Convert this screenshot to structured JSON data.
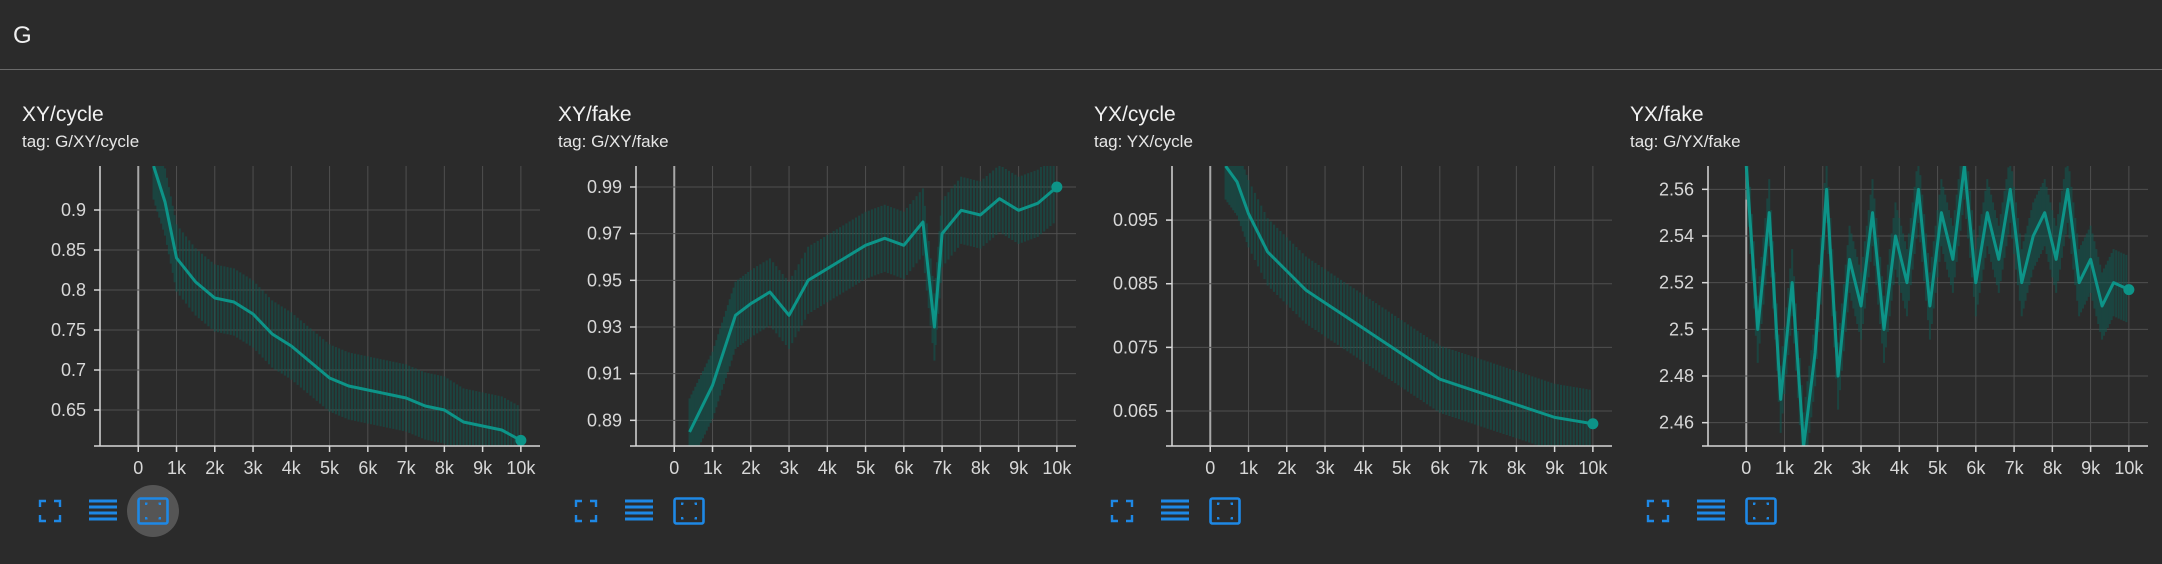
{
  "group": {
    "title": "G"
  },
  "colors": {
    "line": "#0d9488",
    "band": "#0f5a52",
    "axis": "#d8d8d8",
    "grid": "#4f4f4f",
    "zero": "#a8a8a8",
    "icon": "#1e88e5"
  },
  "toolbar": {
    "icons": [
      "fullscreen-icon",
      "log-scale-icon",
      "fit-domain-icon"
    ]
  },
  "chart_data": [
    {
      "type": "line",
      "title": "XY/cycle",
      "tag": "tag: G/XY/cycle",
      "x_ticks": [
        "0",
        "1k",
        "2k",
        "3k",
        "4k",
        "5k",
        "6k",
        "7k",
        "8k",
        "9k",
        "10k"
      ],
      "y_ticks": [
        "0.65",
        "0.7",
        "0.75",
        "0.8",
        "0.85",
        "0.9"
      ],
      "xlim": [
        -1000,
        10500
      ],
      "ylim": [
        0.605,
        0.955
      ],
      "grid": true,
      "series": [
        {
          "x": [
            400,
            700,
            1000,
            1500,
            2000,
            2500,
            3000,
            3500,
            4000,
            4500,
            5000,
            5500,
            6000,
            6500,
            7000,
            7500,
            8000,
            8500,
            9000,
            9500,
            10000
          ],
          "y": [
            0.955,
            0.91,
            0.84,
            0.81,
            0.79,
            0.785,
            0.77,
            0.745,
            0.73,
            0.71,
            0.69,
            0.68,
            0.675,
            0.67,
            0.665,
            0.655,
            0.65,
            0.635,
            0.63,
            0.625,
            0.612
          ]
        }
      ]
    },
    {
      "type": "line",
      "title": "XY/fake",
      "tag": "tag: G/XY/fake",
      "x_ticks": [
        "0",
        "1k",
        "2k",
        "3k",
        "4k",
        "5k",
        "6k",
        "7k",
        "8k",
        "9k",
        "10k"
      ],
      "y_ticks": [
        "0.89",
        "0.91",
        "0.93",
        "0.95",
        "0.97",
        "0.99"
      ],
      "xlim": [
        -1000,
        10500
      ],
      "ylim": [
        0.879,
        0.999
      ],
      "grid": true,
      "series": [
        {
          "x": [
            400,
            700,
            1000,
            1300,
            1600,
            2000,
            2500,
            3000,
            3500,
            4000,
            4500,
            5000,
            5500,
            6000,
            6500,
            6800,
            7000,
            7500,
            8000,
            8500,
            9000,
            9500,
            10000
          ],
          "y": [
            0.885,
            0.895,
            0.905,
            0.92,
            0.935,
            0.94,
            0.945,
            0.935,
            0.95,
            0.955,
            0.96,
            0.965,
            0.968,
            0.965,
            0.975,
            0.93,
            0.97,
            0.98,
            0.978,
            0.985,
            0.98,
            0.983,
            0.99
          ]
        }
      ]
    },
    {
      "type": "line",
      "title": "YX/cycle",
      "tag": "tag: YX/cycle",
      "x_ticks": [
        "0",
        "1k",
        "2k",
        "3k",
        "4k",
        "5k",
        "6k",
        "7k",
        "8k",
        "9k",
        "10k"
      ],
      "y_ticks": [
        "0.065",
        "0.075",
        "0.085",
        "0.095"
      ],
      "xlim": [
        -1000,
        10500
      ],
      "ylim": [
        0.0595,
        0.1035
      ],
      "grid": true,
      "series": [
        {
          "x": [
            400,
            700,
            1000,
            1500,
            2000,
            2500,
            3000,
            3500,
            4000,
            4500,
            5000,
            5500,
            6000,
            6500,
            7000,
            7500,
            8000,
            8500,
            9000,
            9500,
            10000
          ],
          "y": [
            0.1035,
            0.101,
            0.096,
            0.09,
            0.087,
            0.084,
            0.082,
            0.08,
            0.078,
            0.076,
            0.074,
            0.072,
            0.07,
            0.069,
            0.068,
            0.067,
            0.066,
            0.065,
            0.064,
            0.0635,
            0.063
          ]
        }
      ]
    },
    {
      "type": "line",
      "title": "YX/fake",
      "tag": "tag: G/YX/fake",
      "x_ticks": [
        "0",
        "1k",
        "2k",
        "3k",
        "4k",
        "5k",
        "6k",
        "7k",
        "8k",
        "9k",
        "10k"
      ],
      "y_ticks": [
        "2.46",
        "2.48",
        "2.5",
        "2.52",
        "2.54",
        "2.56"
      ],
      "xlim": [
        -1000,
        10500
      ],
      "ylim": [
        2.45,
        2.57
      ],
      "grid": true,
      "series": [
        {
          "x": [
            0,
            300,
            600,
            900,
            1200,
            1500,
            1800,
            2100,
            2400,
            2700,
            3000,
            3300,
            3600,
            3900,
            4200,
            4500,
            4800,
            5100,
            5400,
            5700,
            6000,
            6300,
            6600,
            6900,
            7200,
            7500,
            7800,
            8100,
            8400,
            8700,
            9000,
            9300,
            9600,
            10000
          ],
          "y": [
            2.57,
            2.5,
            2.55,
            2.47,
            2.52,
            2.45,
            2.49,
            2.56,
            2.48,
            2.53,
            2.51,
            2.55,
            2.5,
            2.54,
            2.52,
            2.56,
            2.51,
            2.55,
            2.53,
            2.57,
            2.52,
            2.55,
            2.53,
            2.56,
            2.52,
            2.54,
            2.55,
            2.53,
            2.56,
            2.52,
            2.53,
            2.51,
            2.52,
            2.517
          ]
        }
      ]
    }
  ]
}
